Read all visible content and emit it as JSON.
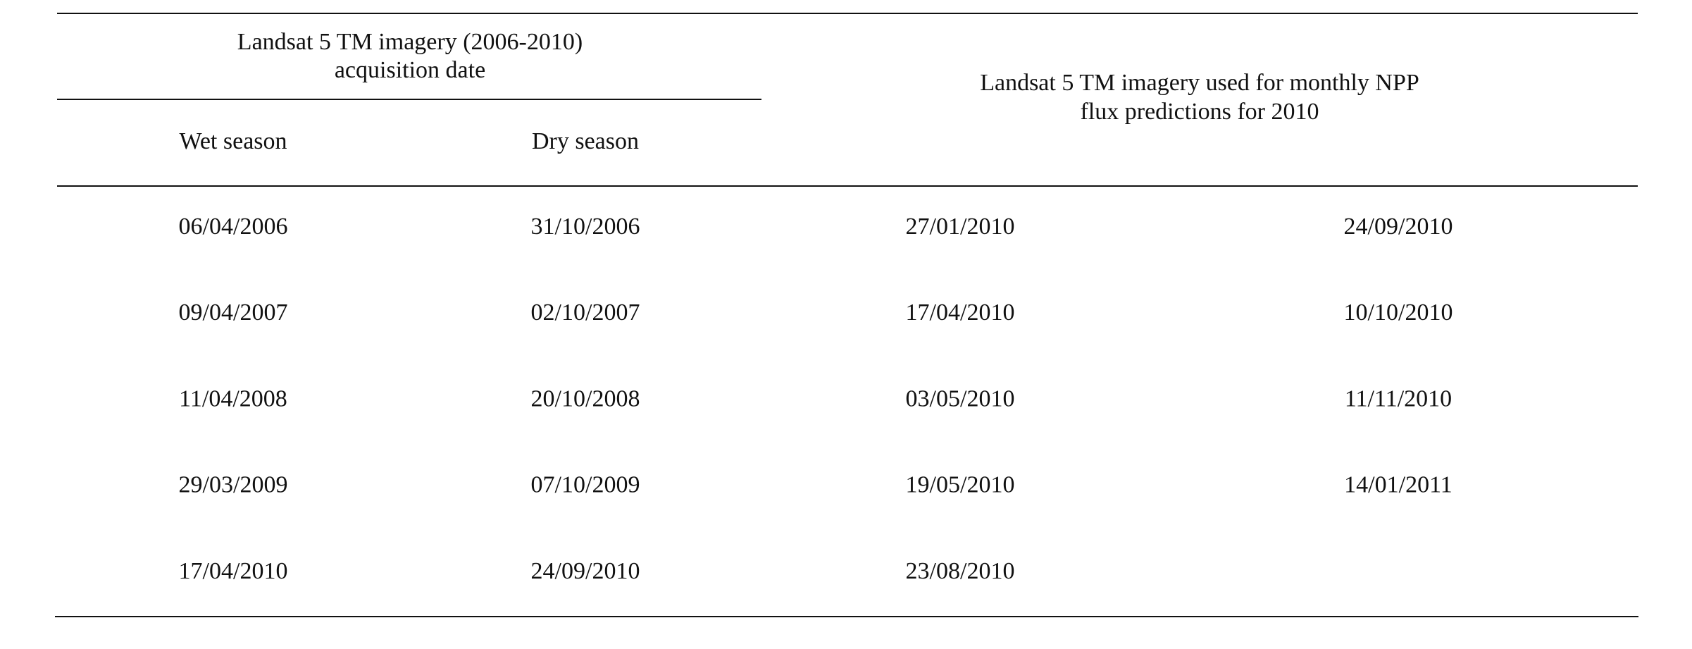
{
  "table": {
    "header": {
      "group_left": [
        "Landsat 5 TM imagery (2006-2010)",
        "acquisition date"
      ],
      "group_right": [
        "Landsat 5 TM imagery used for monthly NPP",
        "flux predictions for 2010"
      ],
      "columns": [
        "Wet season",
        "Dry season"
      ]
    },
    "rows": [
      [
        "06/04/2006",
        "31/10/2006",
        "27/01/2010",
        "24/09/2010"
      ],
      [
        "09/04/2007",
        "02/10/2007",
        "17/04/2010",
        "10/10/2010"
      ],
      [
        "11/04/2008",
        "20/10/2008",
        "03/05/2010",
        "11/11/2010"
      ],
      [
        "29/03/2009",
        "07/10/2009",
        "19/05/2010",
        "14/01/2011"
      ],
      [
        "17/04/2010",
        "24/09/2010",
        "23/08/2010"
      ]
    ]
  }
}
